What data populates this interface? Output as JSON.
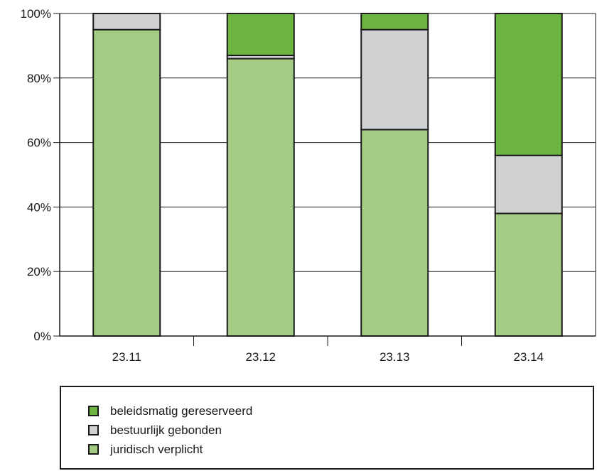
{
  "chart_data": {
    "type": "bar",
    "stacked": true,
    "title": "",
    "xlabel": "",
    "ylabel": "",
    "categories": [
      "23.11",
      "23.12",
      "23.13",
      "23.14"
    ],
    "series": [
      {
        "name": "juridisch verplicht",
        "values": [
          95,
          86,
          64,
          38
        ],
        "color": "#a5cc85"
      },
      {
        "name": "bestuurlijk gebonden",
        "values": [
          5,
          1,
          31,
          18
        ],
        "color": "#d0d1d3"
      },
      {
        "name": "beleidsmatig gereserveerd",
        "values": [
          0,
          13,
          5,
          44
        ],
        "color": "#6bb43f"
      }
    ],
    "ylim": [
      0,
      100
    ],
    "yticks": [
      "0%",
      "20%",
      "40%",
      "60%",
      "80%",
      "100%"
    ],
    "grid": true,
    "legend_position": "bottom",
    "legend": [
      {
        "label": "beleidsmatig gereserveerd",
        "color": "#6bb43f"
      },
      {
        "label": "bestuurlijk gebonden",
        "color": "#d0d1d3"
      },
      {
        "label": "juridisch verplicht",
        "color": "#a5cc85"
      }
    ]
  }
}
